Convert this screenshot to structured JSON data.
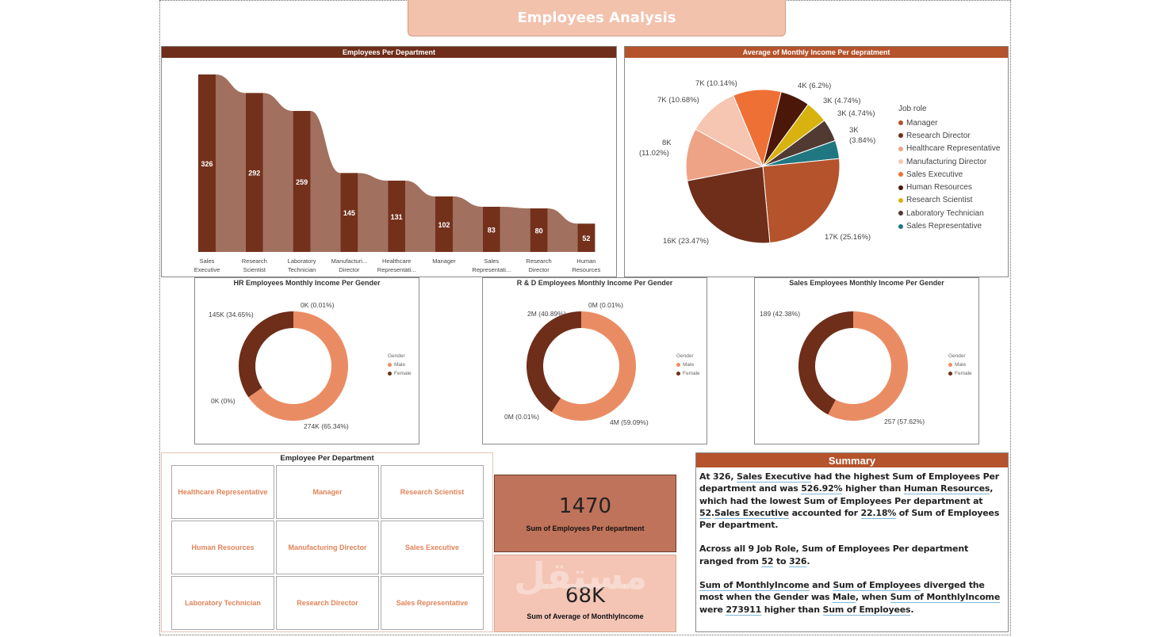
{
  "title": "Employees Analysis",
  "colors": {
    "dark_brown": "#73311c",
    "light_brown": "#a1705e",
    "header_brown": "#6e2e1a",
    "header_orange": "#b5532c",
    "male": "#ea8c63",
    "female": "#6e2e1a",
    "kpi1_bg": "#bf735a",
    "kpi2_bg": "#f4c5b5"
  },
  "dept_chart": {
    "header": "Employees Per Department",
    "chart_data": {
      "type": "bar",
      "title": "Employees Per Department",
      "categories": [
        "Sales Executive",
        "Research Scientist",
        "Laboratory Technician",
        "Manufacturing Director",
        "Healthcare Representative",
        "Manager",
        "Sales Representative",
        "Research Director",
        "Human Resources"
      ],
      "tick_labels": [
        [
          "Sales",
          "Executive"
        ],
        [
          "Research",
          "Scientist"
        ],
        [
          "Laboratory",
          "Technician"
        ],
        [
          "Manufacturi...",
          "Director"
        ],
        [
          "Healthcare",
          "Representati..."
        ],
        [
          "Manager"
        ],
        [
          "Sales",
          "Representati..."
        ],
        [
          "Research",
          "Director"
        ],
        [
          "Human",
          "Resources"
        ]
      ],
      "values": [
        326,
        292,
        259,
        145,
        131,
        102,
        83,
        80,
        52
      ],
      "ylim": [
        0,
        326
      ]
    }
  },
  "pie_chart": {
    "header": "Average of Monthly Income Per depratment",
    "legend_title": "Job role",
    "chart_data": {
      "type": "pie",
      "title": "Average of Monthly Income Per depratment",
      "slices": [
        {
          "name": "Manager",
          "value": 25.16,
          "label": "17K (25.16%)",
          "color": "#b5532c"
        },
        {
          "name": "Research Director",
          "value": 23.47,
          "label": "16K (23.47%)",
          "color": "#6e2e1a"
        },
        {
          "name": "Healthcare Representative",
          "value": 11.02,
          "label": "8K (11.02%)",
          "color": "#eea386"
        },
        {
          "name": "Manufacturing Director",
          "value": 10.68,
          "label": "7K (10.68%)",
          "color": "#f6c6b2"
        },
        {
          "name": "Sales Executive",
          "value": 10.14,
          "label": "7K (10.14%)",
          "color": "#ee7035"
        },
        {
          "name": "Human Resources",
          "value": 6.2,
          "label": "4K (6.2%)",
          "color": "#4a1708"
        },
        {
          "name": "Research Scientist",
          "value": 4.74,
          "label": "3K (4.74%)",
          "color": "#d8b20f"
        },
        {
          "name": "Laboratory Technician",
          "value": 4.74,
          "label": "3K (4.74%)",
          "color": "#503a32"
        },
        {
          "name": "Sales Representative",
          "value": 3.84,
          "label": "3K (3.84%)",
          "color": "#207781"
        }
      ]
    },
    "labels": {
      "l17k": "17K (25.16%)",
      "l16k": "16K (23.47%)",
      "l8k_a": "8K",
      "l8k_b": "(11.02%)",
      "l7k_a": "7K (10.68%)",
      "l7k_b": "7K (10.14%)",
      "l4k": "4K (6.2%)",
      "l3k_a": "3K (4.74%)",
      "l3k_b": "3K (4.74%)",
      "l3k_c1": "3K",
      "l3k_c2": "(3.84%)"
    }
  },
  "donuts": [
    {
      "title": "HR Employees Monthly Income Per Gender",
      "legend_title": "Gender",
      "legend": [
        "Male",
        "Female"
      ],
      "chart_data": {
        "type": "pie",
        "series": [
          {
            "name": "Male",
            "value": 65.34,
            "label": "274K (65.34%)"
          },
          {
            "name": "Female",
            "value": 34.65,
            "label": "145K (34.65%)"
          }
        ],
        "extra_labels": [
          "0K (0.01%)",
          "0K (0%)"
        ]
      }
    },
    {
      "title": "R & D Employees Monthly Income Per Gender",
      "legend_title": "Gender",
      "legend": [
        "Male",
        "Female"
      ],
      "chart_data": {
        "type": "pie",
        "series": [
          {
            "name": "Male",
            "value": 59.09,
            "label": "4M (59.09%)"
          },
          {
            "name": "Female",
            "value": 40.89,
            "label": "2M (40.89%)"
          }
        ],
        "extra_labels": [
          "0M (0.01%)",
          "0M (0.01%)"
        ]
      }
    },
    {
      "title": "Sales Employees Monthly Income Per Gender",
      "legend_title": "Gender",
      "legend": [
        "Male",
        "Female"
      ],
      "chart_data": {
        "type": "pie",
        "series": [
          {
            "name": "Male",
            "value": 57.62,
            "label": "257 (57.62%)"
          },
          {
            "name": "Female",
            "value": 42.38,
            "label": "189 (42.38%)"
          }
        ],
        "extra_labels": []
      }
    }
  ],
  "slicer": {
    "title": "Employee Per Department",
    "items": [
      "Healthcare Representative",
      "Manager",
      "Research Scientist",
      "Human Resources",
      "Manufacturing Director",
      "Sales Executive",
      "Laboratory Technician",
      "Research Director",
      "Sales Representative"
    ]
  },
  "kpi1": {
    "value": "1470",
    "label": "Sum of Employees Per department"
  },
  "kpi2": {
    "value": "68K",
    "label": "Sum of Average of MonthlyIncome"
  },
  "summary": {
    "title": "Summary",
    "p1": {
      "t1": "At 326, ",
      "u1": "Sales Executive",
      "t2": " had the highest Sum of Employees Per department and was ",
      "u2": "526.92%",
      "t3": " higher than ",
      "u3": "Human Resources",
      "t4": ", which had the lowest Sum of Employees Per department at ",
      "u4": "52",
      "t5": ".",
      "u5": "Sales Executive",
      "t6": " accounted for ",
      "u6": "22.18%",
      "t7": " of Sum of Employees Per department."
    },
    "p2": {
      "t1": "Across all 9 Job Role, Sum of Employees Per department ranged from ",
      "u1": "52",
      "t2": " to ",
      "u2": "326",
      "t3": "."
    },
    "p3": {
      "u1": "Sum of  MonthlyIncome",
      "t1": " and ",
      "u2": "Sum of Employees",
      "t2": " diverged the most when the Gender was ",
      "u3": "Male",
      "t3": ", when ",
      "u4": "Sum of  MonthlyIncome",
      "t4": " were ",
      "u5": "273911",
      "t5": " higher than ",
      "u6": "Sum of Employees",
      "t6": "."
    }
  },
  "watermark": "مستقل"
}
